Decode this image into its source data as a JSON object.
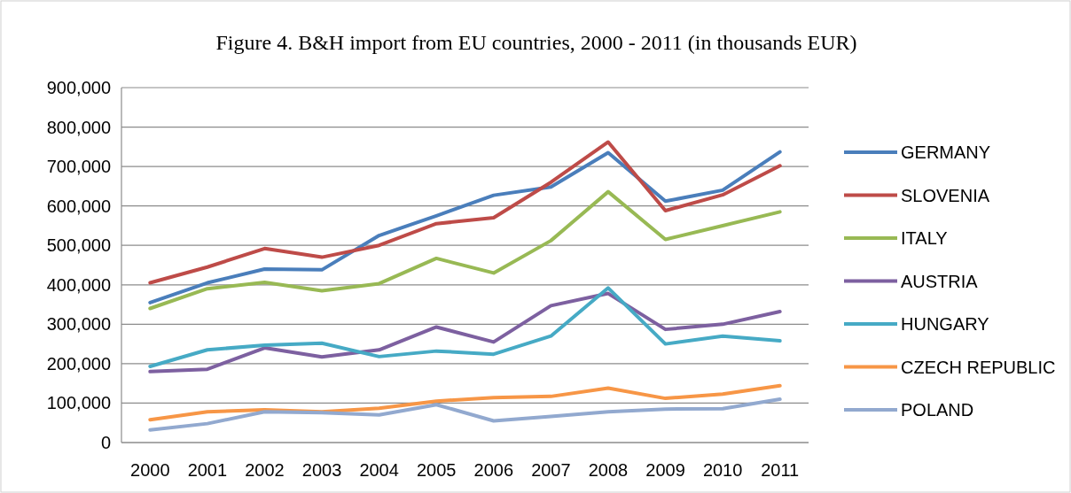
{
  "chart_data": {
    "type": "line",
    "title": "Figure 4. B&H import from EU countries, 2000 - 2011 (in thousands EUR)",
    "categories": [
      "2000",
      "2001",
      "2002",
      "2003",
      "2004",
      "2005",
      "2006",
      "2007",
      "2008",
      "2009",
      "2010",
      "2011"
    ],
    "ylim": [
      0,
      900000
    ],
    "yticks": [
      {
        "value": 0,
        "label": "0"
      },
      {
        "value": 100000,
        "label": "100,000"
      },
      {
        "value": 200000,
        "label": "200,000"
      },
      {
        "value": 300000,
        "label": "300,000"
      },
      {
        "value": 400000,
        "label": "400,000"
      },
      {
        "value": 500000,
        "label": "500,000"
      },
      {
        "value": 600000,
        "label": "600,000"
      },
      {
        "value": 700000,
        "label": "700,000"
      },
      {
        "value": 800000,
        "label": "800,000"
      },
      {
        "value": 900000,
        "label": "900,000"
      }
    ],
    "grid": "y",
    "legend": "right",
    "marker": "none",
    "line_style": "solid",
    "series": [
      {
        "name": "GERMANY",
        "color": "#4a7ebb",
        "values": [
          355000,
          405000,
          440000,
          438000,
          525000,
          575000,
          627000,
          648000,
          735000,
          612000,
          640000,
          737000
        ]
      },
      {
        "name": "SLOVENIA",
        "color": "#be4b48",
        "values": [
          405000,
          445000,
          492000,
          470000,
          500000,
          555000,
          570000,
          660000,
          762000,
          588000,
          628000,
          702000
        ]
      },
      {
        "name": "ITALY",
        "color": "#98b954",
        "values": [
          340000,
          390000,
          406000,
          385000,
          403000,
          467000,
          430000,
          512000,
          636000,
          515000,
          550000,
          585000
        ]
      },
      {
        "name": "AUSTRIA",
        "color": "#7d60a0",
        "values": [
          180000,
          186000,
          240000,
          217000,
          235000,
          293000,
          255000,
          347000,
          378000,
          287000,
          300000,
          332000
        ]
      },
      {
        "name": "HUNGARY",
        "color": "#46aac5",
        "values": [
          193000,
          235000,
          247000,
          252000,
          218000,
          232000,
          224000,
          270000,
          392000,
          250000,
          270000,
          258000
        ]
      },
      {
        "name": "CZECH REPUBLIC",
        "color": "#f79646",
        "values": [
          58000,
          78000,
          83000,
          78000,
          87000,
          105000,
          114000,
          117000,
          138000,
          112000,
          123000,
          144000
        ]
      },
      {
        "name": "POLAND",
        "color": "#92a9cf",
        "values": [
          32000,
          48000,
          78000,
          76000,
          70000,
          96000,
          55000,
          66000,
          78000,
          85000,
          86000,
          110000
        ]
      }
    ]
  }
}
